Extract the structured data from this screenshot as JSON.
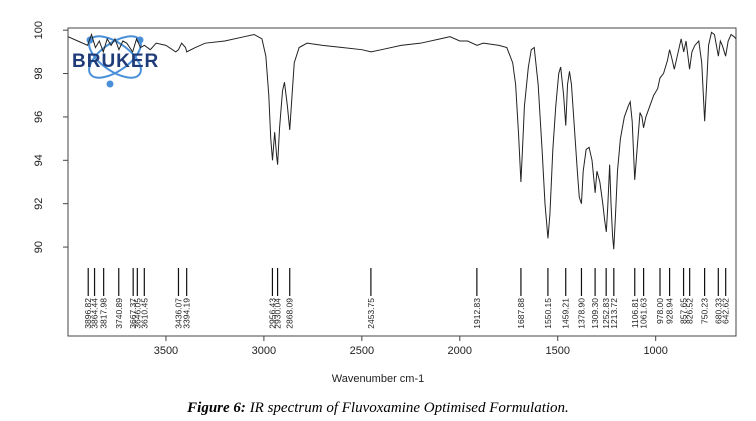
{
  "chart_data": {
    "type": "line",
    "xlabel": "Wavenumber cm-1",
    "logo": "BRUKER",
    "caption": {
      "label": "Figure 6:",
      "text": "IR spectrum of Fluvoxamine Optimised Formulation."
    },
    "color": "#222222",
    "xlim": [
      4000,
      590
    ],
    "ylim": [
      85.9,
      100.1
    ],
    "xticks": [
      3500,
      3000,
      2500,
      2000,
      1500,
      1000
    ],
    "yticks": [
      90,
      92,
      94,
      96,
      98,
      100
    ],
    "x": [
      4000,
      3950,
      3900,
      3880,
      3860,
      3840,
      3820,
      3800,
      3780,
      3760,
      3740,
      3720,
      3700,
      3670,
      3650,
      3630,
      3610,
      3580,
      3550,
      3500,
      3450,
      3436,
      3420,
      3400,
      3394,
      3350,
      3300,
      3200,
      3100,
      3050,
      3010,
      2990,
      2975,
      2965,
      2956,
      2945,
      2935,
      2930,
      2920,
      2905,
      2895,
      2880,
      2868,
      2860,
      2845,
      2820,
      2780,
      2700,
      2600,
      2500,
      2453,
      2400,
      2300,
      2200,
      2100,
      2050,
      2000,
      1960,
      1912,
      1880,
      1800,
      1760,
      1730,
      1715,
      1700,
      1688,
      1680,
      1670,
      1650,
      1635,
      1620,
      1600,
      1580,
      1565,
      1550,
      1540,
      1525,
      1510,
      1495,
      1485,
      1470,
      1459,
      1450,
      1440,
      1430,
      1415,
      1400,
      1390,
      1379,
      1370,
      1355,
      1340,
      1325,
      1309,
      1300,
      1285,
      1270,
      1260,
      1252,
      1245,
      1235,
      1228,
      1220,
      1214,
      1205,
      1195,
      1180,
      1160,
      1140,
      1130,
      1120,
      1107,
      1095,
      1080,
      1070,
      1062,
      1050,
      1030,
      1010,
      990,
      978,
      960,
      940,
      929,
      920,
      905,
      890,
      870,
      857,
      845,
      827,
      815,
      800,
      780,
      765,
      750,
      740,
      730,
      715,
      700,
      690,
      680,
      670,
      660,
      643,
      630,
      615,
      600,
      590
    ],
    "values": [
      99.7,
      99.5,
      99.3,
      99.8,
      99.2,
      99.5,
      99.0,
      99.6,
      99.3,
      99.6,
      99.1,
      99.5,
      99.4,
      99.0,
      99.6,
      99.2,
      99.3,
      99.1,
      99.4,
      99.3,
      99.0,
      99.1,
      99.4,
      99.2,
      99.0,
      99.2,
      99.4,
      99.5,
      99.7,
      99.8,
      99.6,
      98.8,
      97.0,
      95.0,
      94.0,
      95.3,
      94.2,
      93.8,
      95.5,
      97.2,
      97.6,
      96.5,
      95.4,
      96.5,
      98.5,
      99.2,
      99.4,
      99.3,
      99.2,
      99.1,
      99.0,
      99.1,
      99.3,
      99.4,
      99.6,
      99.7,
      99.5,
      99.5,
      99.3,
      99.4,
      99.3,
      99.2,
      98.5,
      97.5,
      95.2,
      93.0,
      94.5,
      96.5,
      98.3,
      99.1,
      99.2,
      97.5,
      94.5,
      92.0,
      90.4,
      91.5,
      94.5,
      96.5,
      98.0,
      98.3,
      97.0,
      95.6,
      97.5,
      98.1,
      97.5,
      95.5,
      93.5,
      92.3,
      92.0,
      93.5,
      94.5,
      94.6,
      94.0,
      92.5,
      93.5,
      93.0,
      92.0,
      91.2,
      90.7,
      91.8,
      93.8,
      92.0,
      90.5,
      89.9,
      91.5,
      93.5,
      95.0,
      96.0,
      96.5,
      96.7,
      95.8,
      93.1,
      94.5,
      96.2,
      96.0,
      95.5,
      96.0,
      96.5,
      97.0,
      97.3,
      97.8,
      98.0,
      98.6,
      99.1,
      98.8,
      98.2,
      98.8,
      99.6,
      99.0,
      99.5,
      98.2,
      99.0,
      99.3,
      99.5,
      98.5,
      95.8,
      97.5,
      99.3,
      99.9,
      99.8,
      99.3,
      98.8,
      99.5,
      99.3,
      98.8,
      99.5,
      99.8,
      99.7,
      99.6
    ],
    "peaks": [
      3896.82,
      3864.44,
      3817.98,
      3740.89,
      3667.37,
      3646.05,
      3610.45,
      3436.07,
      3394.19,
      2956.43,
      2930.04,
      2868.09,
      2453.75,
      1912.83,
      1687.88,
      1550.15,
      1459.21,
      {
        "value": 1378.9,
        "label": "1378.90"
      },
      {
        "value": 1309.3,
        "label": "1309.30"
      },
      1252.83,
      1213.72,
      1106.81,
      1061.63,
      {
        "value": 978,
        "label": "978.00"
      },
      928.94,
      857.65,
      826.52,
      750.23,
      680.33,
      642.62
    ]
  }
}
